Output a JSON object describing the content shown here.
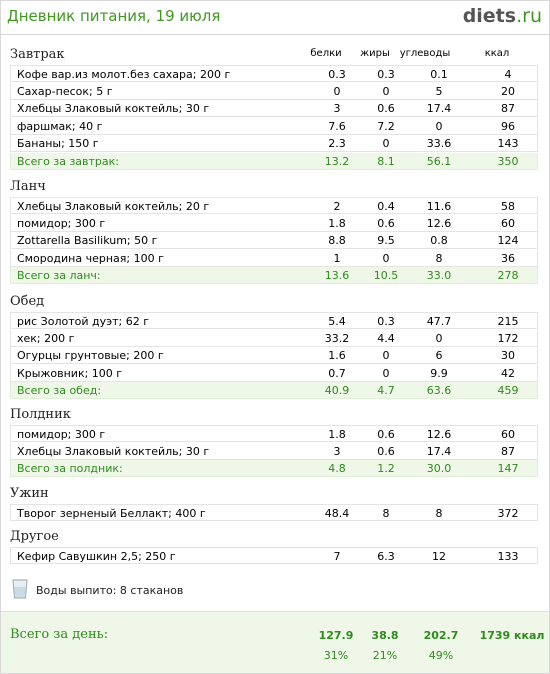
{
  "header": {
    "title": "Дневник питания, 19 июля",
    "logo_main": "diets",
    "logo_ext": ".ru"
  },
  "columns": {
    "protein": "белки",
    "fat": "жиры",
    "carbs": "углеводы",
    "kcal": "ккал"
  },
  "meals": [
    {
      "title": "Завтрак",
      "items": [
        {
          "name": "Кофе вар.из молот.без сахара; 200 г",
          "p": "0.3",
          "f": "0.3",
          "c": "0.1",
          "k": "4"
        },
        {
          "name": "Сахар-песок; 5 г",
          "p": "0",
          "f": "0",
          "c": "5",
          "k": "20"
        },
        {
          "name": "Хлебцы Злаковый коктейль; 30 г",
          "p": "3",
          "f": "0.6",
          "c": "17.4",
          "k": "87"
        },
        {
          "name": "фаршмак; 40 г",
          "p": "7.6",
          "f": "7.2",
          "c": "0",
          "k": "96"
        },
        {
          "name": "Бананы; 150 г",
          "p": "2.3",
          "f": "0",
          "c": "33.6",
          "k": "143"
        }
      ],
      "total": {
        "name": "Всего за завтрак:",
        "p": "13.2",
        "f": "8.1",
        "c": "56.1",
        "k": "350"
      }
    },
    {
      "title": "Ланч",
      "items": [
        {
          "name": "Хлебцы Злаковый коктейль; 20 г",
          "p": "2",
          "f": "0.4",
          "c": "11.6",
          "k": "58"
        },
        {
          "name": "помидор; 300 г",
          "p": "1.8",
          "f": "0.6",
          "c": "12.6",
          "k": "60"
        },
        {
          "name": "Zottarella Basilikum; 50 г",
          "p": "8.8",
          "f": "9.5",
          "c": "0.8",
          "k": "124"
        },
        {
          "name": "Смородина черная; 100 г",
          "p": "1",
          "f": "0",
          "c": "8",
          "k": "36"
        }
      ],
      "total": {
        "name": "Всего за ланч:",
        "p": "13.6",
        "f": "10.5",
        "c": "33.0",
        "k": "278"
      }
    },
    {
      "title": "Обед",
      "items": [
        {
          "name": "рис Золотой дуэт; 62 г",
          "p": "5.4",
          "f": "0.3",
          "c": "47.7",
          "k": "215"
        },
        {
          "name": "хек; 200 г",
          "p": "33.2",
          "f": "4.4",
          "c": "0",
          "k": "172"
        },
        {
          "name": "Огурцы грунтовые; 200 г",
          "p": "1.6",
          "f": "0",
          "c": "6",
          "k": "30"
        },
        {
          "name": "Крыжовник; 100 г",
          "p": "0.7",
          "f": "0",
          "c": "9.9",
          "k": "42"
        }
      ],
      "total": {
        "name": "Всего за обед:",
        "p": "40.9",
        "f": "4.7",
        "c": "63.6",
        "k": "459"
      }
    },
    {
      "title": "Полдник",
      "items": [
        {
          "name": "помидор; 300 г",
          "p": "1.8",
          "f": "0.6",
          "c": "12.6",
          "k": "60"
        },
        {
          "name": "Хлебцы Злаковый коктейль; 30 г",
          "p": "3",
          "f": "0.6",
          "c": "17.4",
          "k": "87"
        }
      ],
      "total": {
        "name": "Всего за полдник:",
        "p": "4.8",
        "f": "1.2",
        "c": "30.0",
        "k": "147"
      }
    },
    {
      "title": "Ужин",
      "items": [
        {
          "name": "Творог зерненый Беллакт; 400 г",
          "p": "48.4",
          "f": "8",
          "c": "8",
          "k": "372"
        }
      ]
    },
    {
      "title": "Другое",
      "items": [
        {
          "name": "Кефир Савушкин 2,5; 250 г",
          "p": "7",
          "f": "6.3",
          "c": "12",
          "k": "133"
        }
      ]
    }
  ],
  "water": {
    "text": "Воды выпито: 8 стаканов",
    "icon": "water-glass-icon"
  },
  "day": {
    "label": "Всего за день:",
    "p": "127.9",
    "f": "38.8",
    "c": "202.7",
    "k": "1739 ккал",
    "p_pct": "31%",
    "f_pct": "21%",
    "c_pct": "49%"
  },
  "colors": {
    "accent": "#3d9a1f",
    "total_bg": "#eef7e8",
    "border": "#e4e4e4"
  }
}
